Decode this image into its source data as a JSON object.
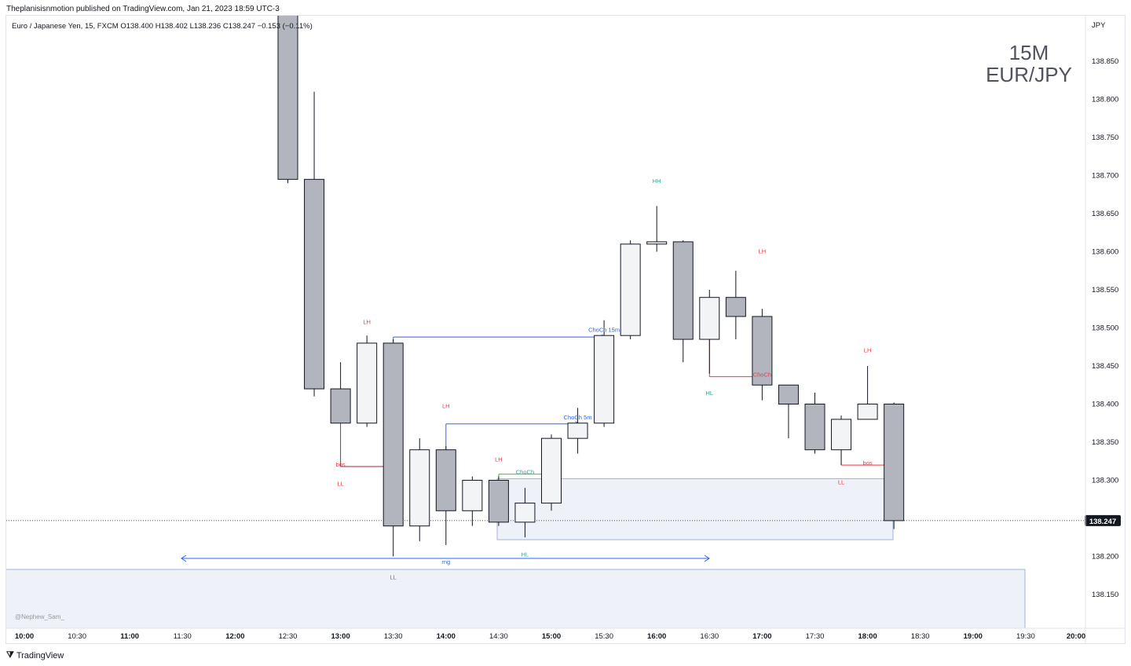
{
  "header": {
    "published": "Theplanisisnmotion published on TradingView.com, Jan 21, 2023 18:59 UTC-3"
  },
  "footer": {
    "brand": "TradingView",
    "brand_icon": "tradingview-logo-icon"
  },
  "colors": {
    "bear_body": "#b2b5be",
    "bull_body": "#f3f4f6",
    "outline": "#131722",
    "zone_fill": "#eef1f7",
    "zone_border": "#9fb3e0",
    "blue_line": "#2962ff",
    "red_label": "#f23645",
    "green_label": "#22ab94"
  },
  "chart_data": {
    "type": "candlestick",
    "instrument": "Euro / Japanese Yen, 15, FXCM",
    "ohlc_legend": {
      "o": "O138.400",
      "h": "H138.402",
      "l": "L138.236",
      "c": "C138.247",
      "chg": "−0.153 (−0.11%)"
    },
    "watermark": [
      "15M",
      "EUR/JPY"
    ],
    "currency_label": "JPY",
    "last_price": "138.247",
    "credit": "@Nephew_Sam_",
    "ylim": [
      138.1,
      138.95
    ],
    "y_ticks": [
      "138.850",
      "138.800",
      "138.750",
      "138.700",
      "138.650",
      "138.600",
      "138.550",
      "138.500",
      "138.450",
      "138.400",
      "138.350",
      "138.300",
      "138.250",
      "138.200",
      "138.150"
    ],
    "x_ticks": [
      {
        "label": "10:00",
        "bold": true
      },
      {
        "label": "10:30",
        "bold": false
      },
      {
        "label": "11:00",
        "bold": true
      },
      {
        "label": "11:30",
        "bold": false
      },
      {
        "label": "12:00",
        "bold": true
      },
      {
        "label": "12:30",
        "bold": false
      },
      {
        "label": "13:00",
        "bold": true
      },
      {
        "label": "13:30",
        "bold": false
      },
      {
        "label": "14:00",
        "bold": true
      },
      {
        "label": "14:30",
        "bold": false
      },
      {
        "label": "15:00",
        "bold": true
      },
      {
        "label": "15:30",
        "bold": false
      },
      {
        "label": "16:00",
        "bold": true
      },
      {
        "label": "16:30",
        "bold": false
      },
      {
        "label": "17:00",
        "bold": true
      },
      {
        "label": "17:30",
        "bold": false
      },
      {
        "label": "18:00",
        "bold": true
      },
      {
        "label": "18:30",
        "bold": false
      },
      {
        "label": "19:00",
        "bold": true
      },
      {
        "label": "19:30",
        "bold": false
      },
      {
        "label": "20:00",
        "bold": true
      }
    ],
    "candles": [
      {
        "t": "12:30",
        "o": 138.98,
        "h": 138.99,
        "l": 138.69,
        "c": 138.695
      },
      {
        "t": "12:45",
        "o": 138.695,
        "h": 138.81,
        "l": 138.41,
        "c": 138.42
      },
      {
        "t": "13:00",
        "o": 138.42,
        "h": 138.455,
        "l": 138.375,
        "c": 138.375
      },
      {
        "t": "13:15",
        "o": 138.375,
        "h": 138.49,
        "l": 138.37,
        "c": 138.48
      },
      {
        "t": "13:30",
        "o": 138.48,
        "h": 138.485,
        "l": 138.2,
        "c": 138.24
      },
      {
        "t": "13:45",
        "o": 138.24,
        "h": 138.355,
        "l": 138.22,
        "c": 138.34
      },
      {
        "t": "14:00",
        "o": 138.34,
        "h": 138.345,
        "l": 138.215,
        "c": 138.26
      },
      {
        "t": "14:15",
        "o": 138.26,
        "h": 138.305,
        "l": 138.24,
        "c": 138.3
      },
      {
        "t": "14:30",
        "o": 138.3,
        "h": 138.305,
        "l": 138.24,
        "c": 138.245
      },
      {
        "t": "14:45",
        "o": 138.245,
        "h": 138.29,
        "l": 138.225,
        "c": 138.27
      },
      {
        "t": "15:00",
        "o": 138.27,
        "h": 138.36,
        "l": 138.26,
        "c": 138.355
      },
      {
        "t": "15:15",
        "o": 138.355,
        "h": 138.395,
        "l": 138.335,
        "c": 138.375
      },
      {
        "t": "15:30",
        "o": 138.375,
        "h": 138.51,
        "l": 138.37,
        "c": 138.49
      },
      {
        "t": "15:45",
        "o": 138.49,
        "h": 138.615,
        "l": 138.485,
        "c": 138.61
      },
      {
        "t": "16:00",
        "o": 138.61,
        "h": 138.66,
        "l": 138.6,
        "c": 138.613
      },
      {
        "t": "16:15",
        "o": 138.613,
        "h": 138.615,
        "l": 138.455,
        "c": 138.485
      },
      {
        "t": "16:30",
        "o": 138.485,
        "h": 138.55,
        "l": 138.44,
        "c": 138.54
      },
      {
        "t": "16:45",
        "o": 138.54,
        "h": 138.575,
        "l": 138.485,
        "c": 138.515
      },
      {
        "t": "17:00",
        "o": 138.515,
        "h": 138.525,
        "l": 138.405,
        "c": 138.425
      },
      {
        "t": "17:15",
        "o": 138.425,
        "h": 138.425,
        "l": 138.355,
        "c": 138.4
      },
      {
        "t": "17:30",
        "o": 138.4,
        "h": 138.415,
        "l": 138.335,
        "c": 138.34
      },
      {
        "t": "17:45",
        "o": 138.34,
        "h": 138.385,
        "l": 138.32,
        "c": 138.38
      },
      {
        "t": "18:00",
        "o": 138.38,
        "h": 138.45,
        "l": 138.38,
        "c": 138.4
      },
      {
        "t": "18:15",
        "o": 138.4,
        "h": 138.402,
        "l": 138.236,
        "c": 138.247
      }
    ],
    "annotations": [
      {
        "text": "LH",
        "color": "red",
        "t": "13:15",
        "price": 138.505
      },
      {
        "text": "bos",
        "color": "red",
        "t": "13:00",
        "price": 138.318
      },
      {
        "text": "LL",
        "color": "red",
        "t": "13:00",
        "price": 138.293
      },
      {
        "text": "LL",
        "color": "red",
        "t": "13:30",
        "price": 138.17
      },
      {
        "text": "LH",
        "color": "red",
        "t": "14:00",
        "price": 138.395
      },
      {
        "text": "LH",
        "color": "red",
        "t": "14:30",
        "price": 138.325
      },
      {
        "text": "ChoCh",
        "color": "green",
        "t": "14:45",
        "price": 138.308
      },
      {
        "text": "ChoCh 5m",
        "color": "blue",
        "t": "15:15",
        "price": 138.38
      },
      {
        "text": "ChoCh 15m",
        "color": "blue",
        "t": "15:30",
        "price": 138.495
      },
      {
        "text": "HH",
        "color": "green",
        "t": "16:00",
        "price": 138.69
      },
      {
        "text": "LH",
        "color": "red",
        "t": "17:00",
        "price": 138.598
      },
      {
        "text": "ChoCh",
        "color": "red",
        "t": "17:00",
        "price": 138.436
      },
      {
        "text": "HL",
        "color": "green",
        "t": "16:30",
        "price": 138.412
      },
      {
        "text": "LH",
        "color": "red",
        "t": "18:00",
        "price": 138.468
      },
      {
        "text": "bos",
        "color": "red",
        "t": "18:00",
        "price": 138.32
      },
      {
        "text": "LL",
        "color": "red",
        "t": "17:45",
        "price": 138.295
      },
      {
        "text": "HL",
        "color": "green",
        "t": "14:45",
        "price": 138.2
      },
      {
        "text": "rng",
        "color": "blue",
        "t": "14:00",
        "price": 138.19
      }
    ]
  }
}
